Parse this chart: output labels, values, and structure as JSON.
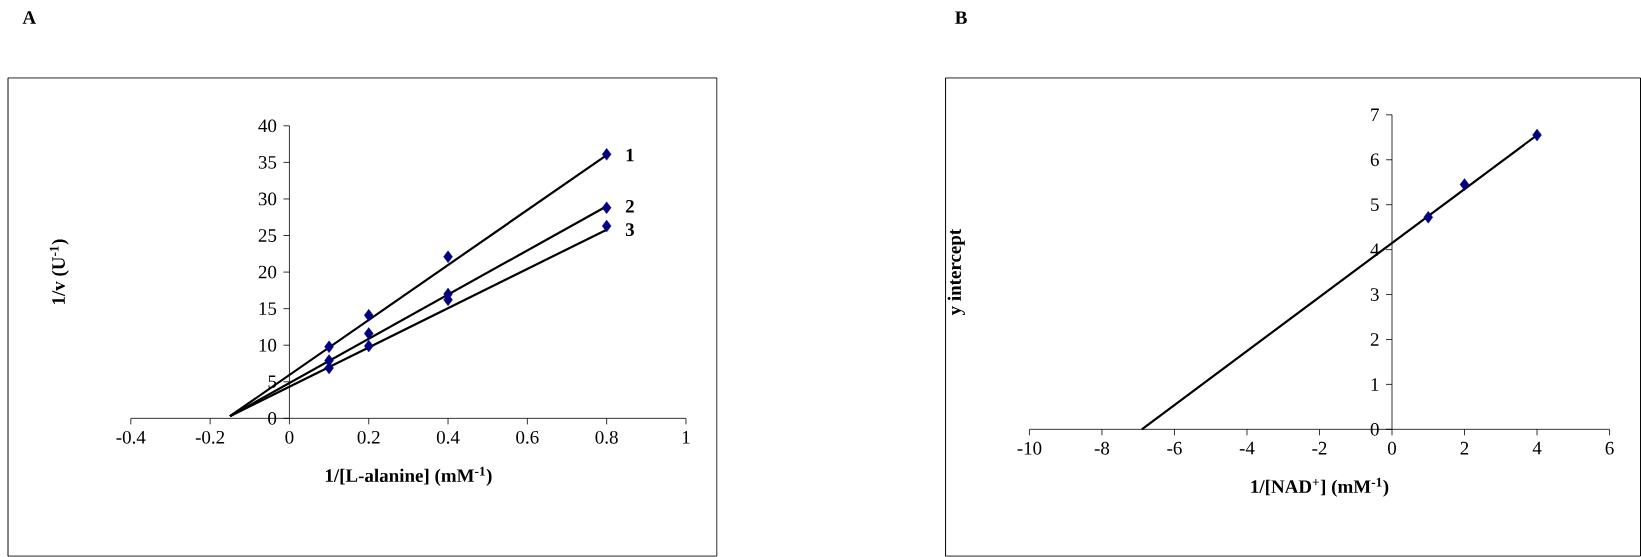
{
  "chart_data": [
    {
      "type": "scatter",
      "title": "A",
      "xlabel": "1/[L-alanine] (mM$^{-1}$)",
      "ylabel": "1/v (U$^{-1}$)",
      "xlim": [
        -0.4,
        1
      ],
      "ylim": [
        0,
        40
      ],
      "xticks": [
        -0.4,
        -0.2,
        0,
        0.2,
        0.4,
        0.6,
        0.8,
        1
      ],
      "yticks": [
        0,
        5,
        10,
        15,
        20,
        25,
        30,
        35,
        40
      ],
      "marker": "diamond",
      "series": [
        {
          "color": "#000080",
          "x": [
            0.1,
            0.2,
            0.4,
            0.8
          ],
          "values": [
            9.8,
            14.1,
            22.1,
            36.1
          ]
        },
        {
          "color": "#000080",
          "x": [
            0.1,
            0.2,
            0.4,
            0.8
          ],
          "values": [
            7.9,
            11.6,
            17.0,
            28.8
          ]
        },
        {
          "color": "#000080",
          "x": [
            0.1,
            0.2,
            0.4,
            0.8
          ],
          "values": [
            6.9,
            9.9,
            16.2,
            26.3
          ]
        },
        {
          "type": "line",
          "name": "1",
          "color": "#000000",
          "marker": "none",
          "line_style": "solid",
          "x": [
            -0.15,
            0.8
          ],
          "values": [
            0.3,
            36.0
          ]
        },
        {
          "type": "line",
          "name": "2",
          "color": "#000000",
          "marker": "none",
          "line_style": "solid",
          "x": [
            -0.15,
            0.8
          ],
          "values": [
            0.3,
            29.0
          ]
        },
        {
          "type": "line",
          "name": "3",
          "color": "#000000",
          "marker": "none",
          "line_style": "solid",
          "x": [
            -0.15,
            0.8
          ],
          "values": [
            0.3,
            25.8
          ]
        }
      ]
    },
    {
      "type": "scatter",
      "title": "B",
      "xlabel": "1/[NAD$^{+}$] (mM$^{-1}$)",
      "ylabel": "y intercept",
      "xlim": [
        -10,
        6
      ],
      "ylim": [
        0,
        7
      ],
      "xticks": [
        -10,
        -8,
        -6,
        -4,
        -2,
        0,
        2,
        4,
        6
      ],
      "yticks": [
        0,
        1,
        2,
        3,
        4,
        5,
        6,
        7
      ],
      "marker": "diamond",
      "series": [
        {
          "color": "#000080",
          "x": [
            1,
            2,
            4
          ],
          "values": [
            4.72,
            5.45,
            6.55
          ]
        },
        {
          "type": "line",
          "color": "#000000",
          "marker": "none",
          "line_style": "solid",
          "x": [
            -6.9,
            4
          ],
          "values": [
            0,
            6.55
          ]
        }
      ]
    }
  ]
}
